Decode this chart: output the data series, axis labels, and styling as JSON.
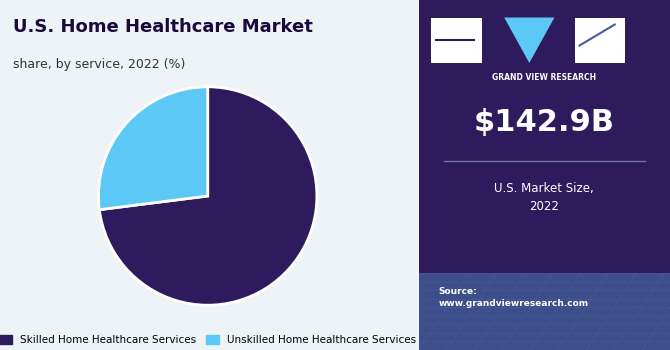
{
  "title": "U.S. Home Healthcare Market",
  "subtitle": "share, by service, 2022 (%)",
  "pie_values": [
    73,
    27
  ],
  "pie_colors": [
    "#2d1b5e",
    "#5bc8f5"
  ],
  "pie_labels": [
    "Skilled Home Healthcare Services",
    "Unskilled Home Healthcare Services"
  ],
  "pie_startangle": 90,
  "market_size": "$142.9B",
  "market_label": "U.S. Market Size,\n2022",
  "source_text": "Source:\nwww.grandviewresearch.com",
  "sidebar_bg": "#2d1b5e",
  "sidebar_bottom_bg": "#4a5ba0",
  "chart_bg": "#eef3f8",
  "title_color": "#1a0a3c",
  "subtitle_color": "#333333"
}
